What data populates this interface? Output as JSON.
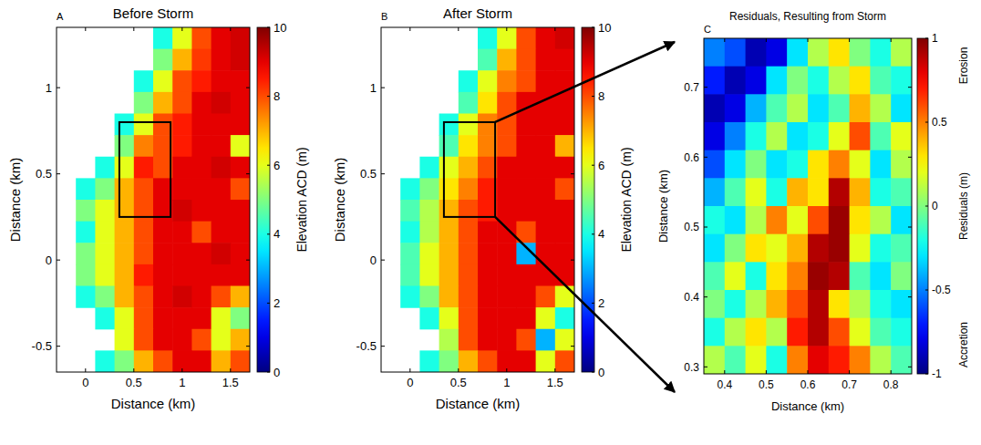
{
  "chart_data": [
    {
      "type": "heatmap",
      "panel": "A",
      "title": "Before Storm",
      "x_label": "Distance (km)",
      "y_label": "Distance (km)",
      "xlim": [
        -0.3,
        1.7
      ],
      "ylim": [
        -0.65,
        1.35
      ],
      "xticks": [
        0,
        0.5,
        1,
        1.5
      ],
      "yticks": [
        -0.5,
        0,
        0.5,
        1
      ],
      "x": [
        -0.2,
        0,
        0.2,
        0.4,
        0.6,
        0.8,
        1,
        1.2,
        1.4,
        1.6
      ],
      "y": [
        1.2875,
        1.1625,
        1.0375,
        0.9125,
        0.7875,
        0.6625,
        0.5375,
        0.4125,
        0.2875,
        0.1625,
        0.0375,
        -0.0875,
        -0.2125,
        -0.3375,
        -0.4625,
        -0.5875
      ],
      "cells": [
        [
          null,
          null,
          null,
          null,
          null,
          4,
          6,
          8,
          9,
          9.2
        ],
        [
          null,
          null,
          null,
          null,
          null,
          5,
          7,
          8.2,
          9,
          9.2
        ],
        [
          null,
          null,
          null,
          null,
          4,
          6,
          8,
          8.5,
          9,
          9
        ],
        [
          null,
          null,
          null,
          null,
          5,
          7,
          8,
          9,
          9.2,
          9
        ],
        [
          null,
          null,
          null,
          4,
          6,
          8,
          8.5,
          9,
          9,
          9
        ],
        [
          null,
          null,
          null,
          5,
          7.5,
          8,
          8.5,
          9,
          9,
          6
        ],
        [
          null,
          null,
          4,
          6,
          8.5,
          8,
          9,
          9,
          9.2,
          9
        ],
        [
          null,
          4,
          5,
          7,
          8,
          9,
          9,
          9,
          9,
          8
        ],
        [
          null,
          5,
          6,
          7,
          8,
          9,
          9.2,
          9,
          9,
          9
        ],
        [
          null,
          4,
          6,
          7,
          8,
          9,
          9,
          8,
          9,
          9
        ],
        [
          null,
          5,
          6,
          7,
          8,
          9,
          9,
          9,
          9.2,
          9
        ],
        [
          null,
          5,
          6,
          7,
          8.5,
          9,
          9,
          9,
          9,
          9
        ],
        [
          null,
          4,
          5,
          7,
          8,
          9,
          9.2,
          9,
          8,
          7
        ],
        [
          null,
          null,
          4,
          6,
          8,
          9,
          9,
          9,
          6,
          5
        ],
        [
          null,
          null,
          null,
          6,
          8,
          9,
          9,
          8,
          6,
          7
        ],
        [
          null,
          null,
          4,
          5,
          7,
          8,
          9,
          9,
          7,
          8
        ]
      ],
      "inset": {
        "x": [
          0.35,
          0.88
        ],
        "y": [
          0.25,
          0.8
        ]
      },
      "colorbar": {
        "label": "Elevation ACD (m)",
        "range": [
          0,
          10
        ],
        "ticks": [
          0,
          2,
          4,
          6,
          8,
          10
        ]
      }
    },
    {
      "type": "heatmap",
      "panel": "B",
      "title": "After Storm",
      "x_label": "Distance (km)",
      "y_label": "Distance (km)",
      "xlim": [
        -0.3,
        1.7
      ],
      "ylim": [
        -0.65,
        1.35
      ],
      "xticks": [
        0,
        0.5,
        1,
        1.5
      ],
      "yticks": [
        -0.5,
        0,
        0.5,
        1
      ],
      "x": [
        -0.2,
        0,
        0.2,
        0.4,
        0.6,
        0.8,
        1,
        1.2,
        1.4,
        1.6
      ],
      "y": [
        1.2875,
        1.1625,
        1.0375,
        0.9125,
        0.7875,
        0.6625,
        0.5375,
        0.4125,
        0.2875,
        0.1625,
        0.0375,
        -0.0875,
        -0.2125,
        -0.3375,
        -0.4625,
        -0.5875
      ],
      "cells": [
        [
          null,
          null,
          null,
          null,
          null,
          4,
          6,
          8,
          9,
          9.2
        ],
        [
          null,
          null,
          null,
          null,
          null,
          4.5,
          7,
          8,
          9,
          9
        ],
        [
          null,
          null,
          null,
          null,
          4,
          6,
          7.5,
          8,
          9,
          9
        ],
        [
          null,
          null,
          null,
          null,
          4.5,
          6.5,
          8,
          9,
          9,
          9
        ],
        [
          null,
          null,
          null,
          4,
          6,
          7.5,
          8,
          9,
          9,
          9
        ],
        [
          null,
          null,
          null,
          4.5,
          6.5,
          7.5,
          8,
          9,
          9,
          7
        ],
        [
          null,
          null,
          4,
          6,
          7,
          8,
          9,
          9,
          9,
          9
        ],
        [
          null,
          4,
          5,
          6.5,
          7.5,
          8.5,
          9,
          9,
          9,
          8
        ],
        [
          null,
          4.5,
          5.5,
          7,
          8,
          8.5,
          9,
          9,
          9,
          9
        ],
        [
          null,
          4,
          5.5,
          7,
          8,
          9,
          9,
          8,
          9,
          9
        ],
        [
          null,
          4.5,
          6,
          7,
          8,
          9,
          9,
          3,
          9,
          9
        ],
        [
          null,
          4.5,
          6,
          7,
          8,
          9,
          9,
          9,
          9,
          9
        ],
        [
          null,
          4,
          5,
          7,
          8,
          9,
          9,
          9,
          8,
          6
        ],
        [
          null,
          null,
          4,
          6,
          8,
          9,
          9,
          9,
          6,
          4
        ],
        [
          null,
          null,
          null,
          5.5,
          8,
          9,
          9,
          8,
          3,
          6
        ],
        [
          null,
          null,
          4,
          5,
          7,
          8,
          9,
          9,
          6,
          8
        ]
      ],
      "inset": {
        "x": [
          0.35,
          0.88
        ],
        "y": [
          0.25,
          0.8
        ]
      },
      "colorbar": {
        "label": "Elevation ACD (m)",
        "range": [
          0,
          10
        ],
        "ticks": [
          0,
          2,
          4,
          6,
          8,
          10
        ]
      }
    },
    {
      "type": "heatmap",
      "panel": "C",
      "title": "Residuals, Resulting from Storm",
      "x_label": "Distance (km)",
      "y_label": "Distance (km)",
      "xlim": [
        0.35,
        0.85
      ],
      "ylim": [
        0.29,
        0.77
      ],
      "xticks": [
        0.4,
        0.5,
        0.6,
        0.7,
        0.8
      ],
      "yticks": [
        0.3,
        0.4,
        0.5,
        0.6,
        0.7
      ],
      "x": [
        0.375,
        0.425,
        0.475,
        0.525,
        0.575,
        0.625,
        0.675,
        0.725,
        0.775,
        0.825
      ],
      "y": [
        0.75,
        0.71,
        0.67,
        0.63,
        0.59,
        0.55,
        0.51,
        0.47,
        0.43,
        0.39,
        0.35,
        0.31
      ],
      "cells": [
        [
          -0.5,
          -0.6,
          -0.9,
          -0.8,
          -0.3,
          0.1,
          0.3,
          0.0,
          -0.2,
          0.1
        ],
        [
          -0.7,
          -0.9,
          -0.8,
          -0.3,
          0.0,
          -0.2,
          0.1,
          0.3,
          -0.1,
          -0.2
        ],
        [
          -0.9,
          -0.8,
          -0.4,
          -0.1,
          0.1,
          -0.3,
          -0.1,
          0.4,
          0.1,
          -0.3
        ],
        [
          -0.8,
          -0.5,
          -0.2,
          0.1,
          -0.3,
          -0.2,
          0.2,
          0.6,
          -0.1,
          0.2
        ],
        [
          -0.6,
          -0.3,
          0.0,
          -0.3,
          -0.2,
          0.3,
          0.5,
          0.2,
          -0.3,
          0.1
        ],
        [
          -0.4,
          -0.1,
          0.2,
          -0.2,
          0.4,
          0.3,
          0.9,
          0.4,
          -0.2,
          -0.1
        ],
        [
          -0.2,
          -0.3,
          0.1,
          0.5,
          0.2,
          0.6,
          0.95,
          0.3,
          0.1,
          -0.3
        ],
        [
          -0.3,
          0.0,
          0.3,
          0.2,
          0.4,
          0.9,
          0.95,
          0.2,
          -0.2,
          -0.1
        ],
        [
          -0.1,
          0.2,
          -0.2,
          0.3,
          0.5,
          0.95,
          0.9,
          -0.1,
          -0.3,
          0.0
        ],
        [
          0.0,
          -0.2,
          0.1,
          0.4,
          0.6,
          0.9,
          0.3,
          0.1,
          -0.2,
          -0.3
        ],
        [
          -0.2,
          0.1,
          0.3,
          0.1,
          0.7,
          0.9,
          0.6,
          0.2,
          -0.1,
          -0.2
        ],
        [
          0.1,
          -0.1,
          0.2,
          -0.2,
          0.5,
          0.8,
          0.7,
          0.5,
          0.1,
          -0.1
        ]
      ],
      "colorbar": {
        "label": "Residuals (m)",
        "range": [
          -1,
          1
        ],
        "ticks": [
          -1,
          -0.5,
          0,
          0.5,
          1
        ],
        "top": "Erosion",
        "bottom": "Accretion"
      }
    }
  ]
}
